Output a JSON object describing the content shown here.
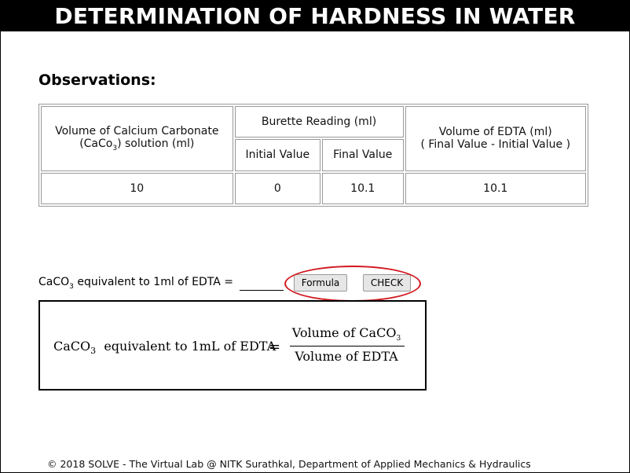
{
  "header": {
    "title": "DETERMINATION OF HARDNESS IN WATER"
  },
  "observations": {
    "heading": "Observations:",
    "columns": {
      "volume_caco3": {
        "label": "Volume of Calcium Carbonate",
        "line2_prefix": "(CaCo",
        "line2_sub": "3",
        "line2_suffix": ") solution (ml)"
      },
      "burette": {
        "label": "Burette Reading (ml)",
        "initial": "Initial Value",
        "final": "Final Value"
      },
      "volume_edta": {
        "line1": "Volume of EDTA (ml)",
        "line2": "( Final Value - Initial Value )"
      }
    },
    "row": {
      "volume_caco3": "10",
      "initial": "0",
      "final": "10.1",
      "volume_edta": "10.1"
    }
  },
  "equivalent": {
    "label_prefix": "CaCO",
    "label_sub": "3",
    "label_suffix": " equivalent to 1ml of EDTA = ",
    "answer_value": "",
    "formula_button": "Formula",
    "check_button": "CHECK"
  },
  "formula": {
    "lhs_prefix": "CaCO",
    "lhs_sub": "3",
    "lhs_suffix": "  equivalent to 1mL of EDTA",
    "equals": "=",
    "numerator_prefix": "Volume of CaCO",
    "numerator_sub": "3",
    "denominator": "Volume of EDTA"
  },
  "footer": {
    "text": "© 2018 SOLVE - The Virtual Lab @ NITK Surathkal, Department of Applied Mechanics & Hydraulics"
  },
  "colors": {
    "highlight": "#d2171f",
    "titlebar": "#000000"
  }
}
